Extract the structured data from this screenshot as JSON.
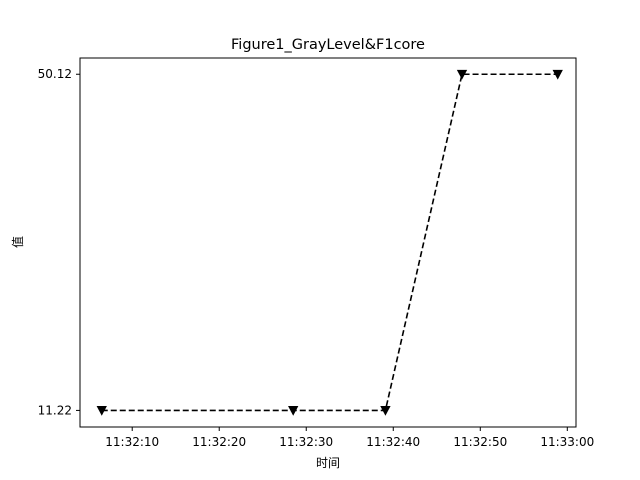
{
  "chart_data": {
    "type": "line",
    "title": "Figure1_GrayLevel&F1core",
    "xlabel": "时间",
    "ylabel": "值",
    "x": [
      "11:32:06.5",
      "11:32:28.5",
      "11:32:39.1",
      "11:32:47.9",
      "11:32:58.9"
    ],
    "series": [
      {
        "values": [
          11.22,
          11.22,
          11.22,
          50.12,
          50.12
        ],
        "color": "#000000",
        "line_style": "dashed",
        "marker": "triangle-down"
      }
    ],
    "x_ticks": [
      "11:32:10",
      "11:32:20",
      "11:32:30",
      "11:32:40",
      "11:32:50",
      "11:33:00"
    ],
    "y_ticks": [
      "11.22",
      "50.12"
    ],
    "xlim": [
      "11:32:04",
      "11:33:01"
    ],
    "ylim": [
      9.3,
      52.0
    ],
    "grid": false,
    "legend": "none"
  }
}
